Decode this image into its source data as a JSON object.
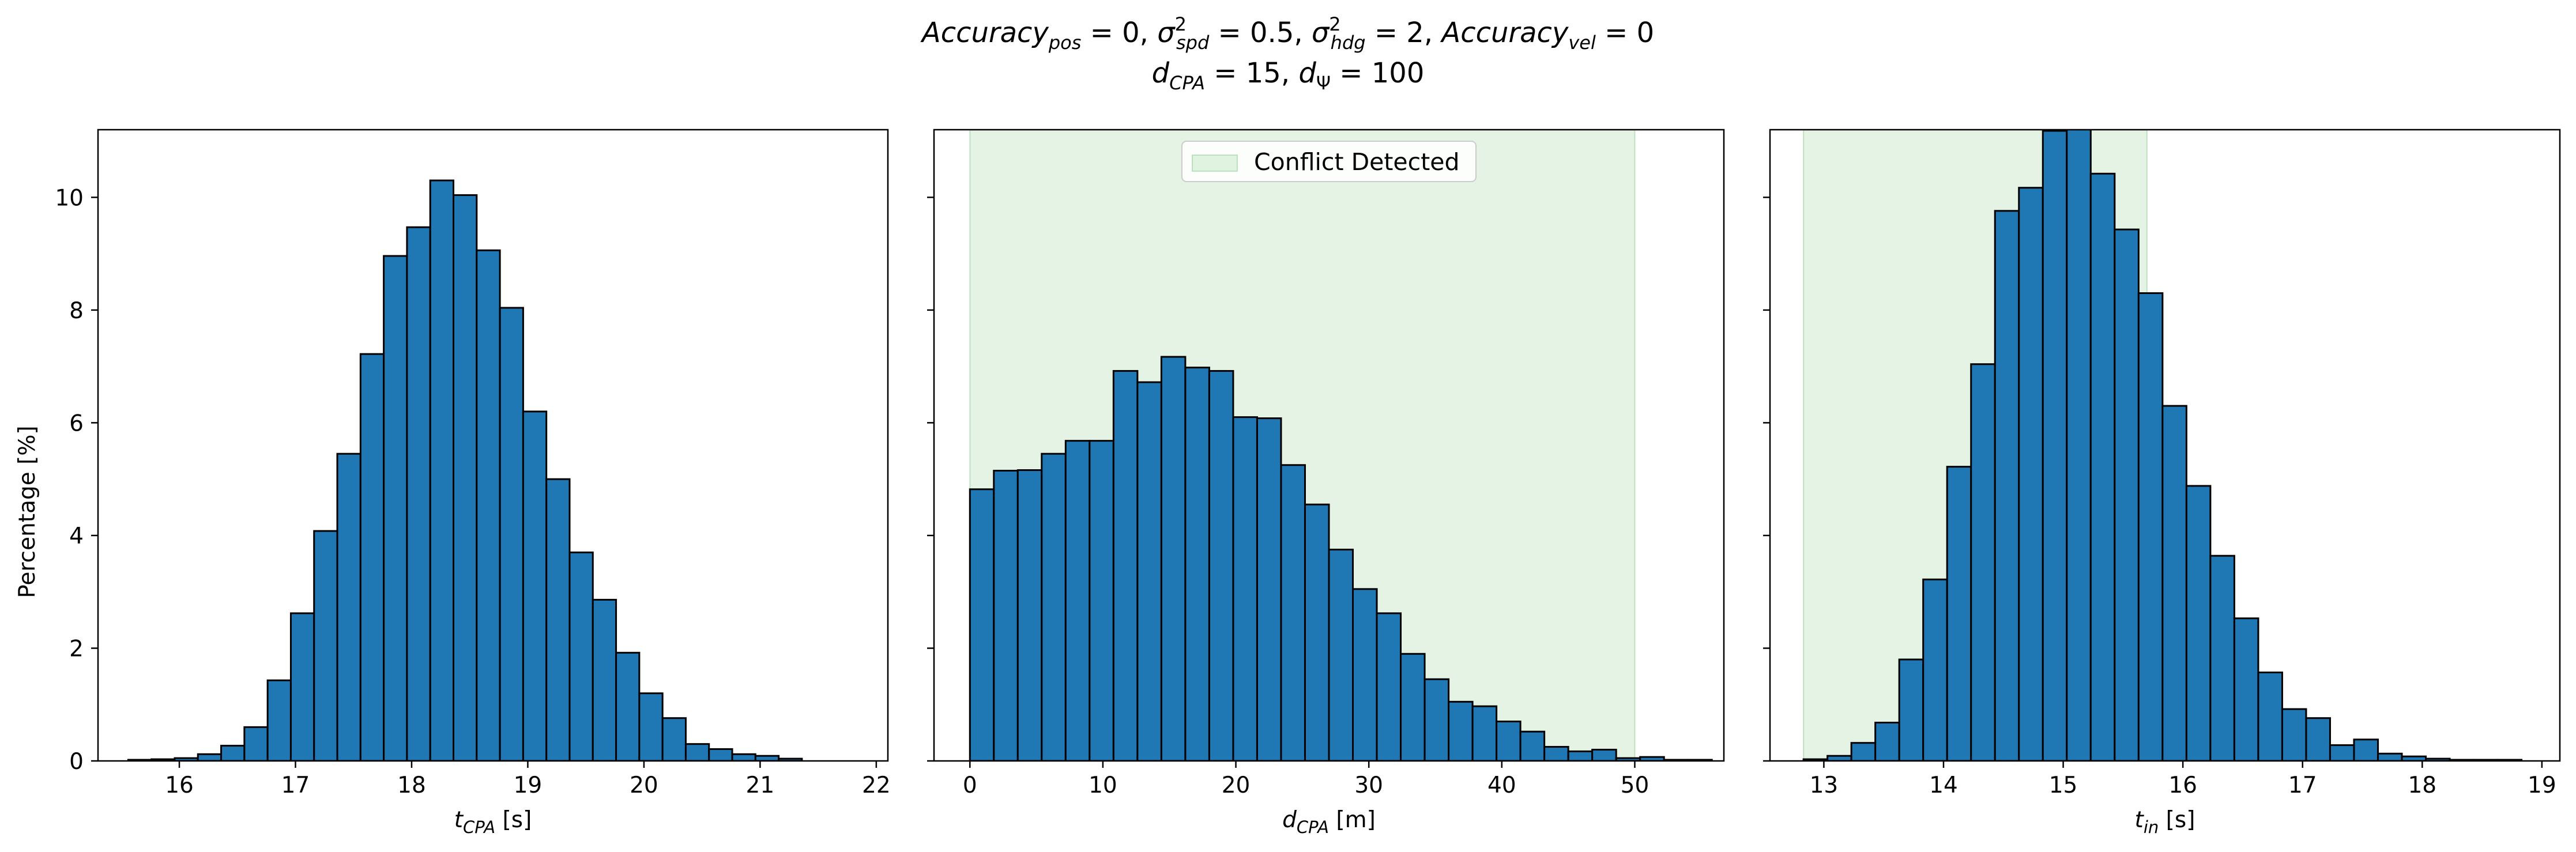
{
  "figure": {
    "title_lines": [
      [
        {
          "text": "Accuracy",
          "style": "it"
        },
        {
          "text": "pos",
          "style": "sub it"
        },
        {
          "text": " = 0, ",
          "style": ""
        },
        {
          "text": "σ",
          "style": "it"
        },
        {
          "text": "2",
          "style": "supsub-sup"
        },
        {
          "text": "spd",
          "style": "supsub-sub it"
        },
        {
          "text": " = 0.5, ",
          "style": ""
        },
        {
          "text": "σ",
          "style": "it"
        },
        {
          "text": "2",
          "style": "supsub-sup"
        },
        {
          "text": "hdg",
          "style": "supsub-sub it"
        },
        {
          "text": " = 2, ",
          "style": ""
        },
        {
          "text": "Accuracy",
          "style": "it"
        },
        {
          "text": "vel",
          "style": "sub it"
        },
        {
          "text": " = 0",
          "style": ""
        }
      ],
      [
        {
          "text": "d",
          "style": "it"
        },
        {
          "text": "CPA",
          "style": "sub it"
        },
        {
          "text": " = 15, ",
          "style": ""
        },
        {
          "text": "d",
          "style": "it"
        },
        {
          "text": "Ψ",
          "style": "sub"
        },
        {
          "text": " = 100",
          "style": ""
        }
      ]
    ],
    "ylabel": "Percentage [%]",
    "colors": {
      "bar_fill": "#1f77b4",
      "bar_edge": "#000000",
      "conflict_fill": "#2ca02c"
    }
  },
  "chart_data": [
    {
      "type": "bar",
      "histogram": true,
      "xlabel": {
        "main": "t",
        "sub": "CPA",
        "unit": " [s]"
      },
      "ylabel": "Percentage [%]",
      "xlim": [
        15.3,
        22.1
      ],
      "ylim": [
        0,
        11.2
      ],
      "xticks": [
        16,
        17,
        18,
        19,
        20,
        21,
        22
      ],
      "yticks": [
        0,
        2,
        4,
        6,
        8,
        10
      ],
      "bin_start": 15.56,
      "bin_width": 0.2,
      "values": [
        0.02,
        0.03,
        0.05,
        0.12,
        0.27,
        0.6,
        1.43,
        2.62,
        4.08,
        5.45,
        7.22,
        8.96,
        9.47,
        10.3,
        10.04,
        9.06,
        8.04,
        6.2,
        5.0,
        3.7,
        2.86,
        1.92,
        1.2,
        0.76,
        0.3,
        0.21,
        0.12,
        0.09,
        0.04
      ]
    },
    {
      "type": "bar",
      "histogram": true,
      "xlabel": {
        "main": "d",
        "sub": "CPA",
        "unit": " [m]"
      },
      "xlim": [
        -2.7,
        56.7
      ],
      "ylim": [
        0,
        11.2
      ],
      "xticks": [
        0,
        10,
        20,
        30,
        40,
        50
      ],
      "yticks": [
        0,
        2,
        4,
        6,
        8,
        10
      ],
      "bin_start": 0,
      "bin_width": 1.8,
      "values": [
        4.82,
        5.15,
        5.16,
        5.45,
        5.68,
        5.68,
        6.92,
        6.72,
        7.17,
        6.98,
        6.92,
        6.1,
        6.08,
        5.25,
        4.55,
        3.75,
        3.05,
        2.62,
        1.9,
        1.45,
        1.05,
        0.97,
        0.7,
        0.52,
        0.25,
        0.17,
        0.2,
        0.05,
        0.07,
        0.02,
        0.02
      ],
      "conflict_region": [
        0,
        50
      ],
      "legend": {
        "label": "Conflict Detected",
        "placement": "upper center"
      }
    },
    {
      "type": "bar",
      "histogram": true,
      "xlabel": {
        "main": "t",
        "sub": "in",
        "unit": " [s]"
      },
      "xlim": [
        12.55,
        19.15
      ],
      "ylim": [
        0,
        11.2
      ],
      "xticks": [
        13,
        14,
        15,
        16,
        17,
        18,
        19
      ],
      "yticks": [
        0,
        2,
        4,
        6,
        8,
        10
      ],
      "bin_start": 12.83,
      "bin_width": 0.2,
      "values": [
        0.03,
        0.09,
        0.32,
        0.68,
        1.8,
        3.22,
        5.22,
        7.04,
        9.76,
        10.17,
        11.18,
        11.22,
        10.42,
        9.43,
        8.3,
        6.3,
        4.88,
        3.64,
        2.53,
        1.57,
        0.92,
        0.76,
        0.28,
        0.38,
        0.13,
        0.08,
        0.04,
        0.02,
        0.02,
        0.02
      ],
      "conflict_region": [
        12.83,
        15.7
      ]
    }
  ]
}
